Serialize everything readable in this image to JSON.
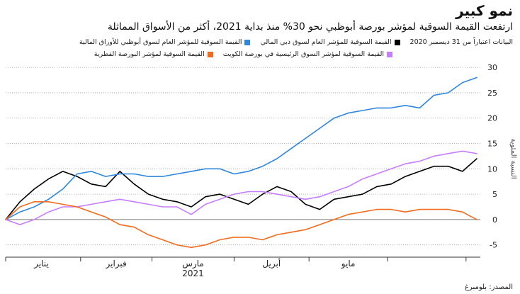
{
  "header": {
    "title": "نمو كبير",
    "subtitle": "ارتفعت القيمة السوقية لمؤشر بورصة أبوظبي نحو 30% منذ بداية 2021، أكثر من الأسواق المماثلة"
  },
  "legend": {
    "note": "البيانات اعتباراً من 31 ديسمبر 2020",
    "items": [
      {
        "label": "القيمة السوقية للمؤشر العام لسوق دبي المالي",
        "color": "#000000"
      },
      {
        "label": "القيمة السوقية للمؤشر العام لسوق أبوظبي للأوراق المالية",
        "color": "#2e86de"
      },
      {
        "label": "القيمة السوقية لمؤشر السوق الرئيسية في بورصة الكويت",
        "color": "#c77dff"
      },
      {
        "label": "القيمة السوقية لمؤشر البورصة القطرية",
        "color": "#f26b1d"
      }
    ]
  },
  "source": "المصدر: بلومبرغ",
  "chart_data": {
    "type": "line",
    "ylabel": "النسبة المئوية",
    "ylim": [
      -7,
      31
    ],
    "yticks": [
      -5,
      0,
      5,
      10,
      15,
      20,
      25,
      30
    ],
    "ytick_labels": [
      "-5",
      "0",
      "5",
      "10",
      "15",
      "20",
      "25",
      "30"
    ],
    "xlim": [
      0,
      133
    ],
    "x_ticks": [
      0,
      21,
      41,
      64,
      85,
      107,
      129
    ],
    "x_labels": [
      {
        "text": "يناير",
        "x": 10
      },
      {
        "text": "فبراير",
        "x": 31
      },
      {
        "text": "مارس",
        "x": 52.5
      },
      {
        "text": "أبريل",
        "x": 74.5
      },
      {
        "text": "مايو",
        "x": 96
      },
      {
        "text": "2021",
        "x": 52.5
      }
    ],
    "grid": "horizontal-dotted",
    "x": [
      0,
      4,
      8,
      12,
      16,
      20,
      24,
      28,
      32,
      36,
      40,
      44,
      48,
      52,
      56,
      60,
      64,
      68,
      72,
      76,
      80,
      84,
      88,
      92,
      96,
      100,
      104,
      108,
      112,
      116,
      120,
      124,
      128,
      132
    ],
    "series": [
      {
        "name": "القيمة السوقية للمؤشر العام لسوق دبي المالي",
        "color": "#000000",
        "values": [
          0,
          3.5,
          6,
          8,
          9.5,
          8.5,
          7,
          6.5,
          9.5,
          7,
          5,
          4,
          3.5,
          2.5,
          4.5,
          5,
          4,
          3,
          5,
          6.5,
          5.5,
          3,
          2,
          4,
          4.5,
          5,
          6.5,
          7,
          8.5,
          9.5,
          10.5,
          10.5,
          9.5,
          12
        ]
      },
      {
        "name": "القيمة السوقية للمؤشر العام لسوق أبوظبي للأوراق المالية",
        "color": "#2e86de",
        "values": [
          0,
          1.5,
          2.5,
          4,
          6,
          9,
          9.5,
          8.5,
          9,
          9,
          8.5,
          8.5,
          9,
          9.5,
          10,
          10,
          9,
          9.5,
          10.5,
          12,
          14,
          16,
          18,
          20,
          21,
          21.5,
          22,
          22,
          22.5,
          22,
          24.5,
          25,
          27,
          28
        ]
      },
      {
        "name": "القيمة السوقية لمؤشر السوق الرئيسية في بورصة الكويت",
        "color": "#c77dff",
        "values": [
          0,
          -1,
          0,
          1.5,
          2.5,
          2.5,
          3,
          3.5,
          4,
          3.5,
          3,
          2.5,
          2.5,
          1,
          3,
          4,
          5,
          5.5,
          5.5,
          5,
          4.5,
          4,
          4.5,
          5.5,
          6.5,
          8,
          9,
          10,
          11,
          11.5,
          12.5,
          13,
          13.5,
          13
        ]
      },
      {
        "name": "القيمة السوقية لمؤشر البورصة القطرية",
        "color": "#f26b1d",
        "values": [
          0,
          2.5,
          3.5,
          3.5,
          3,
          2.5,
          1.5,
          0.5,
          -1,
          -1.5,
          -3,
          -4,
          -5,
          -5.5,
          -5,
          -4,
          -3.5,
          -3.5,
          -4,
          -3,
          -2.5,
          -2,
          -1,
          0,
          1,
          1.5,
          2,
          2,
          1.5,
          2,
          2,
          2,
          1.5,
          0
        ]
      }
    ]
  }
}
